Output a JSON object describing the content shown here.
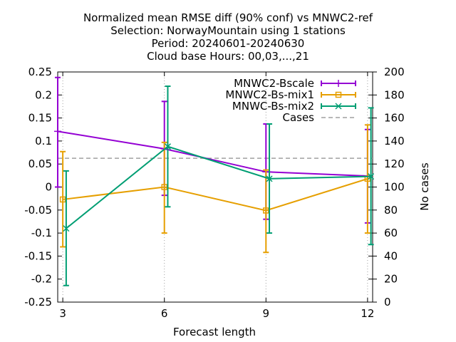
{
  "chart_data": {
    "type": "line",
    "title": [
      "Normalized mean RMSE diff (90% conf) vs MNWC2-ref",
      "Selection: NorwayMountain using     1 stations",
      "Period: 20240601-20240630",
      "Cloud base   Hours: 00,03,...,21"
    ],
    "xlabel": "Forecast length",
    "ylabel": "",
    "y2label": "No cases",
    "xlim": [
      2.85,
      12.15
    ],
    "ylim": [
      -0.25,
      0.25
    ],
    "y2lim": [
      0,
      200
    ],
    "xticks": [
      3,
      6,
      9,
      12
    ],
    "yticks": [
      -0.25,
      -0.2,
      -0.15,
      -0.1,
      -0.05,
      0,
      0.05,
      0.1,
      0.15,
      0.2,
      0.25
    ],
    "ytick_labels": [
      "-0.25",
      "-0.2",
      "-0.15",
      "-0.1",
      "-0.05",
      "0",
      "0.05",
      "0.1",
      "0.15",
      "0.2",
      "0.25"
    ],
    "y2ticks": [
      0,
      20,
      40,
      60,
      80,
      100,
      120,
      140,
      160,
      180,
      200
    ],
    "grid": "vertical dotted at x ticks",
    "legend_position": "top-right",
    "series": [
      {
        "name": "MNWC2-Bscale",
        "color": "#9400d3",
        "marker": "plus",
        "x": [
          2.85,
          6,
          9,
          12
        ],
        "y": [
          0.121,
          0.083,
          0.033,
          0.024
        ],
        "err_low": [
          0.0,
          -0.018,
          -0.07,
          -0.078
        ],
        "err_high": [
          0.238,
          0.186,
          0.137,
          0.125
        ]
      },
      {
        "name": "MNWC2-Bs-mix1",
        "color": "#e69f00",
        "marker": "square",
        "x": [
          3,
          6,
          9,
          12
        ],
        "y": [
          -0.027,
          0.0,
          -0.051,
          0.018
        ],
        "err_low": [
          -0.13,
          -0.1,
          -0.142,
          -0.1
        ],
        "err_high": [
          0.077,
          0.097,
          0.037,
          0.135
        ]
      },
      {
        "name": "MNWC-Bs-mix2",
        "color": "#009e73",
        "marker": "cross",
        "x": [
          3.1,
          6.1,
          9.1,
          12.1
        ],
        "y": [
          -0.09,
          0.088,
          0.018,
          0.023
        ],
        "err_low": [
          -0.214,
          -0.043,
          -0.1,
          -0.125
        ],
        "err_high": [
          0.035,
          0.219,
          0.137,
          0.172
        ]
      }
    ],
    "cases": {
      "name": "Cases",
      "color": "#a0a0a0",
      "value": 125
    }
  }
}
